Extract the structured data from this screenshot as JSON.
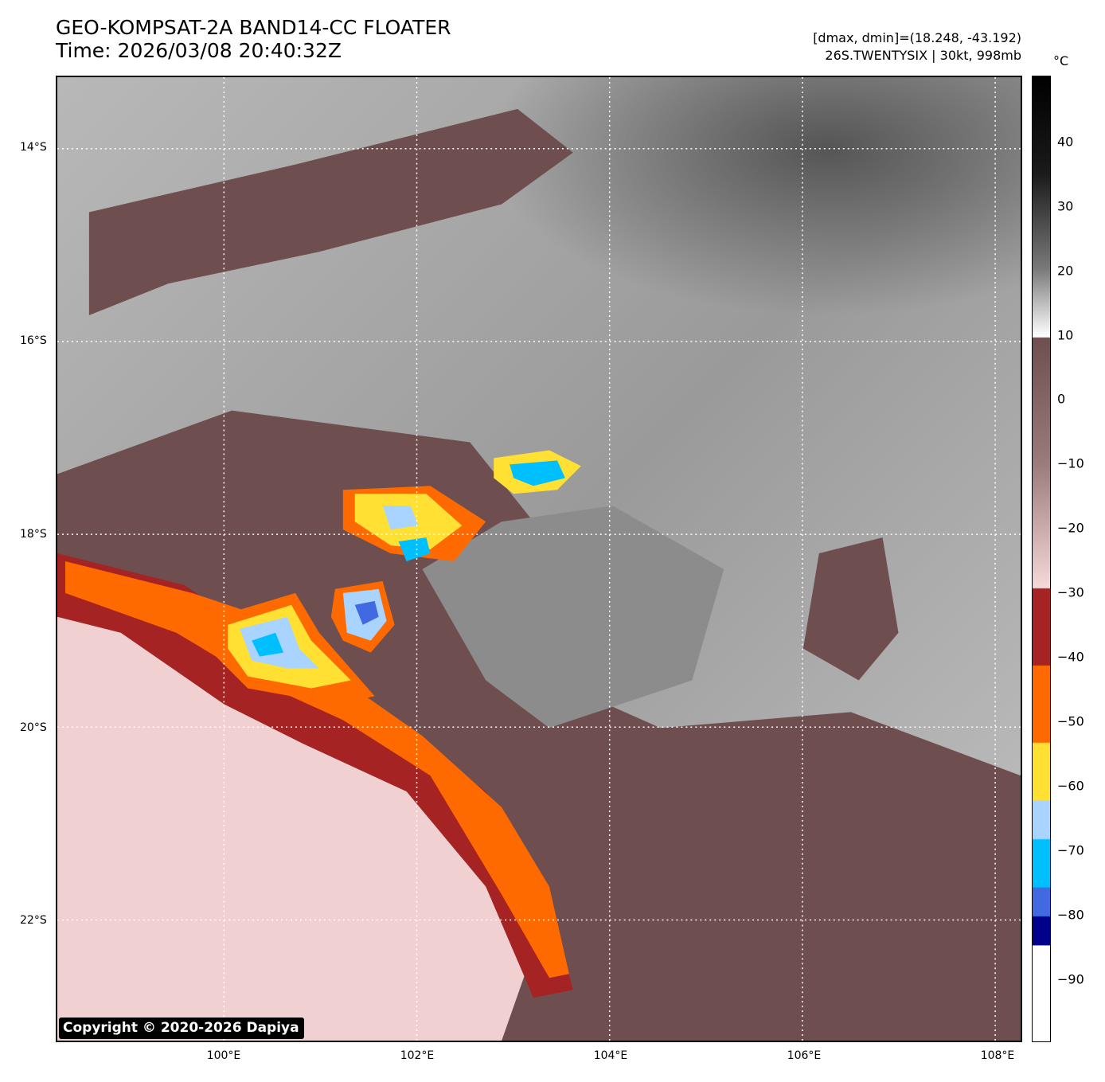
{
  "header": {
    "title_line1": "GEO-KOMPSAT-2A BAND14-CC FLOATER",
    "title_line2": "Time: 2026/03/08 20:40:32Z",
    "meta_line1": "[dmax, dmin]=(18.248, -43.192)",
    "meta_line2": "26S.TWENTYSIX | 30kt, 998mb"
  },
  "copyright": "Copyright © 2020-2026 Dapiya",
  "map": {
    "lat_labels": [
      "14°S",
      "16°S",
      "18°S",
      "20°S",
      "22°S"
    ],
    "lon_labels": [
      "100°E",
      "102°E",
      "104°E",
      "106°E",
      "108°E"
    ]
  },
  "colorbar": {
    "unit": "°C",
    "ticks": [
      "40",
      "30",
      "20",
      "10",
      "0",
      "−10",
      "−20",
      "−30",
      "−40",
      "−50",
      "−60",
      "−70",
      "−80",
      "−90"
    ],
    "colors": {
      "black": "#000000",
      "white": "#ffffff",
      "brown": "#6e4e4e",
      "pink": "#f5d8d8",
      "red": "#a52323",
      "orange": "#ff6a00",
      "yellow": "#ffe033",
      "lightblue": "#a8d4ff",
      "cyan": "#00bfff",
      "blue": "#4169e1",
      "navy": "#00008b"
    }
  }
}
